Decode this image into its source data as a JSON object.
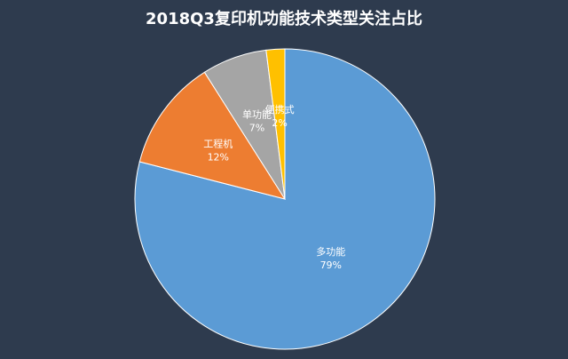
{
  "chart_data": {
    "type": "pie",
    "title": "2018Q3复印机功能技术类型关注占比",
    "categories": [
      "多功能",
      "工程机",
      "单功能",
      "便携式"
    ],
    "values": [
      79,
      12,
      7,
      2
    ],
    "value_labels": [
      "79%",
      "12%",
      "7%",
      "2%"
    ],
    "colors": [
      "#5b9bd5",
      "#ed7d31",
      "#a5a5a5",
      "#ffc000"
    ]
  }
}
